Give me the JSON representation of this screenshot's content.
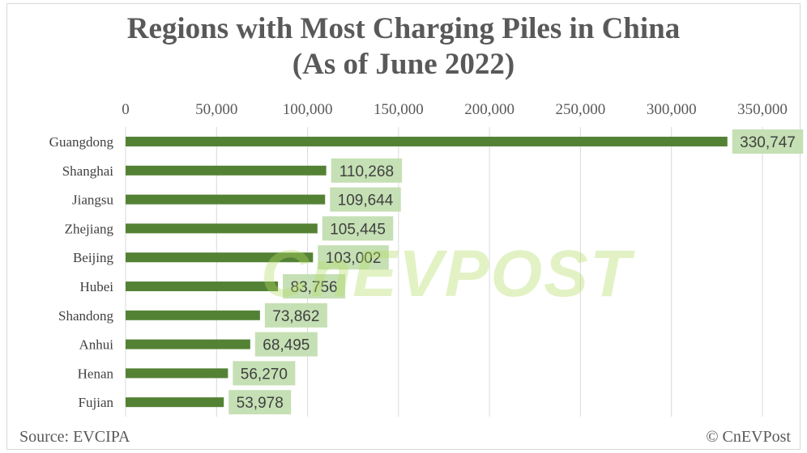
{
  "chart_data": {
    "type": "bar",
    "orientation": "horizontal",
    "title": "Regions with Most Charging Piles in China",
    "subtitle": "(As of June 2022)",
    "categories": [
      "Guangdong",
      "Shanghai",
      "Jiangsu",
      "Zhejiang",
      "Beijing",
      "Hubei",
      "Shandong",
      "Anhui",
      "Henan",
      "Fujian"
    ],
    "values": [
      330747,
      110268,
      109644,
      105445,
      103002,
      83756,
      73862,
      68495,
      56270,
      53978
    ],
    "data_labels": [
      "330,747",
      "110,268",
      "109,644",
      "105,445",
      "103,002",
      "83,756",
      "73,862",
      "68,495",
      "56,270",
      "53,978"
    ],
    "xlim": [
      0,
      350000
    ],
    "xticks": [
      0,
      50000,
      100000,
      150000,
      200000,
      250000,
      300000,
      350000
    ],
    "xtick_labels": [
      "0",
      "50,000",
      "100,000",
      "150,000",
      "200,000",
      "250,000",
      "300,000",
      "350,000"
    ],
    "axis_position": "top",
    "grid": true,
    "bar_color": "#548235",
    "label_bg_color": "#c5e0b4"
  },
  "footer": {
    "source": "Source: EVCIPA",
    "copyright": "© CnEVPost"
  },
  "watermark": "CnEVPOST"
}
